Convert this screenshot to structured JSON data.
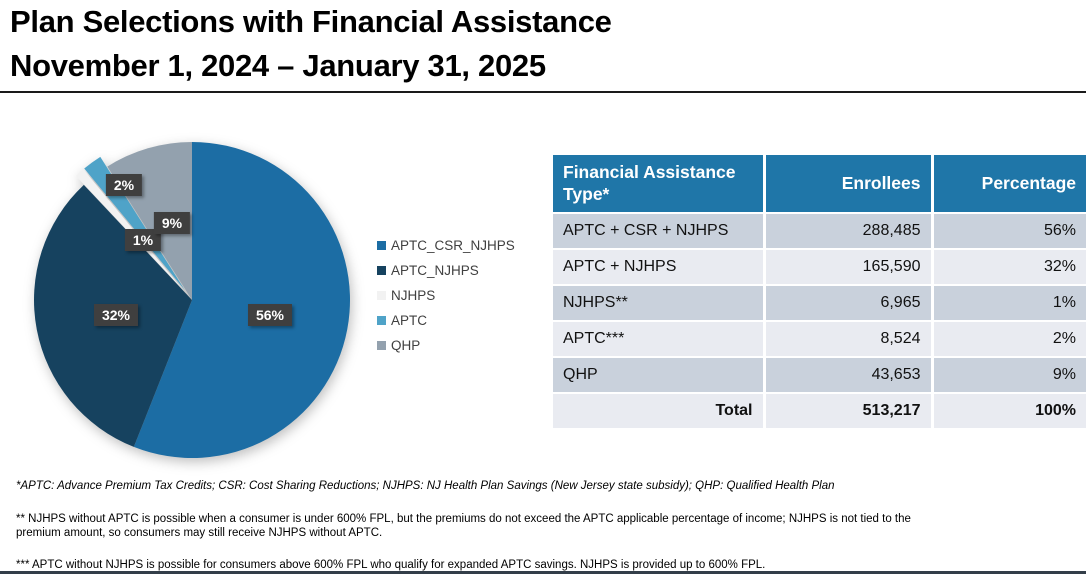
{
  "title": {
    "line1": "Plan Selections with Financial Assistance",
    "line2": "November 1, 2024 – January 31, 2025"
  },
  "chart_data": {
    "type": "pie",
    "title": "Plan Selections with Financial Assistance, November 1, 2024 – January 31, 2025",
    "categories": [
      "APTC_CSR_NJHPS",
      "APTC_NJHPS",
      "NJHPS",
      "APTC",
      "QHP"
    ],
    "values": [
      56,
      32,
      1,
      2,
      9
    ],
    "value_labels": [
      "56%",
      "32%",
      "1%",
      "2%",
      "9%"
    ],
    "enrollees": [
      288485,
      165590,
      6965,
      8524,
      43653
    ],
    "total_enrollees": 513217,
    "colors": [
      "#1c6da4",
      "#16425f",
      "#f2f2f2",
      "#4fa3c8",
      "#93a1ae"
    ],
    "legend_position": "right",
    "start_angle_deg": 0,
    "direction": "clockwise"
  },
  "table": {
    "headers": [
      "Financial Assistance Type*",
      "Enrollees",
      "Percentage"
    ],
    "rows": [
      [
        "APTC + CSR + NJHPS",
        "288,485",
        "56%"
      ],
      [
        "APTC + NJHPS",
        "165,590",
        "32%"
      ],
      [
        "NJHPS**",
        "6,965",
        "1%"
      ],
      [
        "APTC***",
        "8,524",
        "2%"
      ],
      [
        "QHP",
        "43,653",
        "9%"
      ]
    ],
    "total": [
      "Total",
      "513,217",
      "100%"
    ]
  },
  "footnotes": [
    "*APTC: Advance Premium Tax Credits; CSR: Cost Sharing Reductions; NJHPS: NJ Health Plan Savings (New Jersey state subsidy); QHP: Qualified Health Plan",
    "** NJHPS without APTC is possible when a consumer is under 600% FPL, but the premiums do not exceed the APTC applicable percentage of income; NJHPS is not tied to the premium amount, so consumers may still receive NJHPS without APTC.",
    "*** APTC without NJHPS is possible for consumers above 600% FPL who qualify for expanded APTC savings. NJHPS is provided up to 600% FPL."
  ],
  "colors": {
    "table_header": "#1f76a8",
    "row_dark": "#c9d1dc",
    "row_light": "#e9ebf1",
    "label_box": "#3f3f3f",
    "title_rule": "#1a1a1a",
    "bottom_bar": "#333e49"
  }
}
